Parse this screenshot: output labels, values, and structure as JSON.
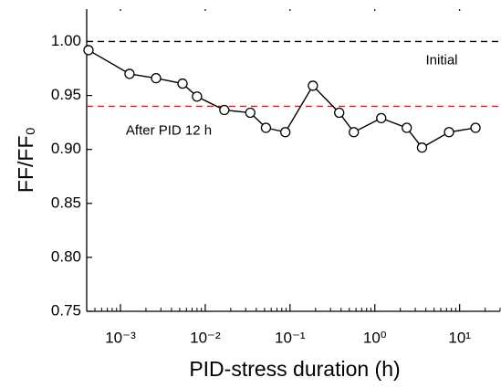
{
  "chart_data": {
    "type": "line",
    "x_label": "PID-stress duration (h)",
    "y_label": "FF/FF₀",
    "x_scale": "log",
    "xlim": [
      0.0004,
      30
    ],
    "ylim": [
      0.75,
      1.03
    ],
    "xticks": [
      {
        "value": 0.001,
        "label": "10⁻³"
      },
      {
        "value": 0.01,
        "label": "10⁻²"
      },
      {
        "value": 0.1,
        "label": "10⁻¹"
      },
      {
        "value": 1,
        "label": "10⁰"
      },
      {
        "value": 10,
        "label": "10¹"
      }
    ],
    "yticks": [
      {
        "value": 0.75,
        "label": "0.75"
      },
      {
        "value": 0.8,
        "label": "0.80"
      },
      {
        "value": 0.85,
        "label": "0.85"
      },
      {
        "value": 0.9,
        "label": "0.90"
      },
      {
        "value": 0.95,
        "label": "0.95"
      },
      {
        "value": 1,
        "label": "1.00"
      }
    ],
    "x": [
      0.00042,
      0.00128,
      0.00263,
      0.0054,
      0.008,
      0.0168,
      0.034,
      0.052,
      0.088,
      0.186,
      0.38,
      0.565,
      1.19,
      2.38,
      3.6,
      7.5,
      15.4
    ],
    "series": [
      {
        "color": "#000000",
        "values": [
          0.992,
          0.97,
          0.966,
          0.961,
          0.949,
          0.9365,
          0.934,
          0.92,
          0.916,
          0.959,
          0.934,
          0.916,
          0.929,
          0.92,
          0.9017,
          0.916,
          0.92
        ]
      }
    ],
    "reference_lines": [
      {
        "value": 1.0,
        "color": "#000000",
        "label": "Initial"
      },
      {
        "value": 0.94,
        "color": "#e8141c",
        "label": "After PID 12 h"
      }
    ]
  }
}
